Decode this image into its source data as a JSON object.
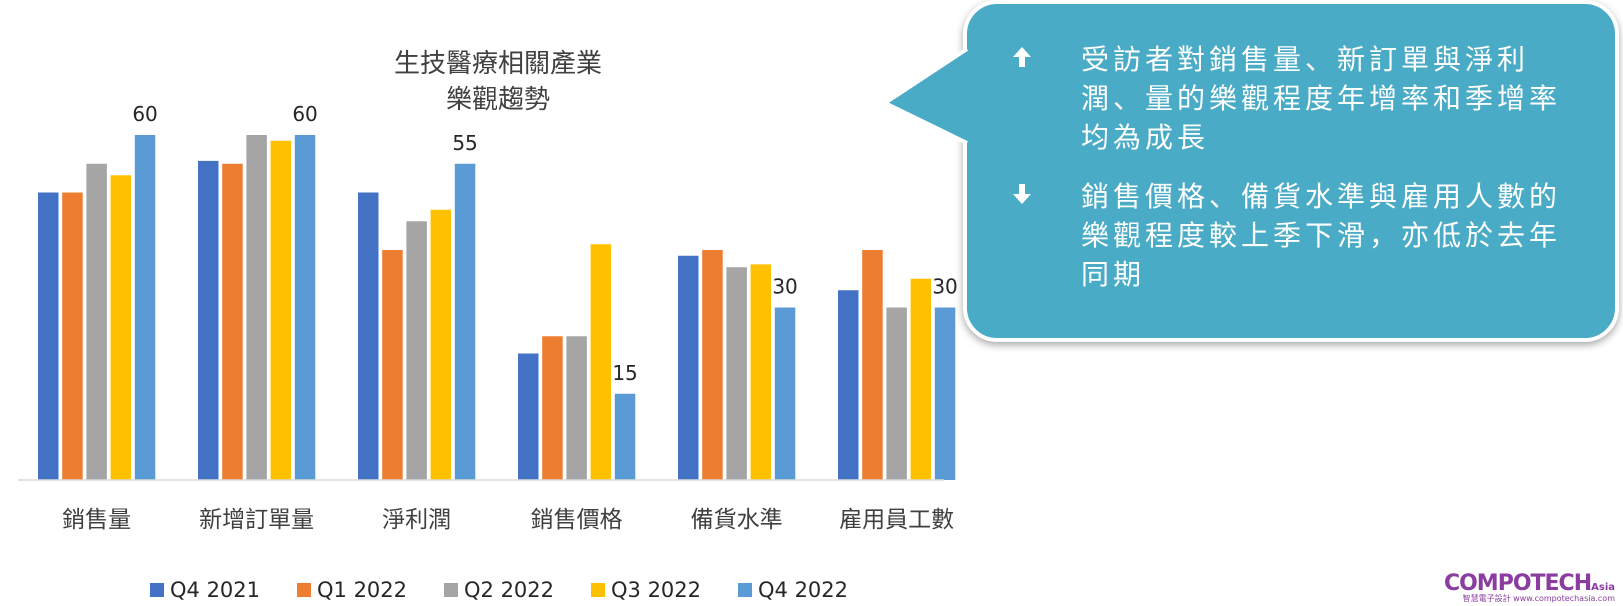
{
  "chart_data": {
    "type": "bar",
    "title_lines": [
      "生技醫療相關產業",
      "樂觀趨勢"
    ],
    "categories": [
      "銷售量",
      "新增訂單量",
      "淨利潤",
      "銷售價格",
      "備貨水準",
      "雇用員工數"
    ],
    "series": [
      {
        "name": "Q4 2021",
        "color": "#4472c4",
        "values": [
          50,
          55.5,
          50,
          22,
          39,
          33
        ]
      },
      {
        "name": "Q1 2022",
        "color": "#ed7d31",
        "values": [
          50,
          55,
          40,
          25,
          40,
          40
        ]
      },
      {
        "name": "Q2 2022",
        "color": "#a5a5a5",
        "values": [
          55,
          60,
          45,
          25,
          37,
          30
        ]
      },
      {
        "name": "Q3 2022",
        "color": "#ffc000",
        "values": [
          53,
          59,
          47,
          41,
          37.5,
          35
        ]
      },
      {
        "name": "Q4 2022",
        "color": "#5b9bd5",
        "values": [
          60,
          60,
          55,
          15,
          30,
          30
        ]
      }
    ],
    "data_labels": [
      {
        "category_index": 0,
        "series_index": 4,
        "text": "60"
      },
      {
        "category_index": 1,
        "series_index": 4,
        "text": "60"
      },
      {
        "category_index": 2,
        "series_index": 4,
        "text": "55"
      },
      {
        "category_index": 3,
        "series_index": 4,
        "text": "15"
      },
      {
        "category_index": 4,
        "series_index": 4,
        "text": "30"
      },
      {
        "category_index": 5,
        "series_index": 4,
        "text": "30"
      }
    ],
    "ylim": [
      0,
      65
    ],
    "grid": false,
    "legend_position": "bottom"
  },
  "callout": {
    "items": [
      {
        "icon": "arrow-up-icon",
        "text": "受訪者對銷售量、新訂單與淨利潤、量的樂觀程度年增率和季增率均為成長"
      },
      {
        "icon": "arrow-down-icon",
        "text": "銷售價格、備貨水準與雇用人數的樂觀程度較上季下滑，亦低於去年同期"
      }
    ],
    "background": "#4aabc6"
  },
  "brand": {
    "name": "COMPOTECH",
    "suffix": "Asia",
    "subtitle": "智慧電子設計 www.compotechasia.com"
  }
}
